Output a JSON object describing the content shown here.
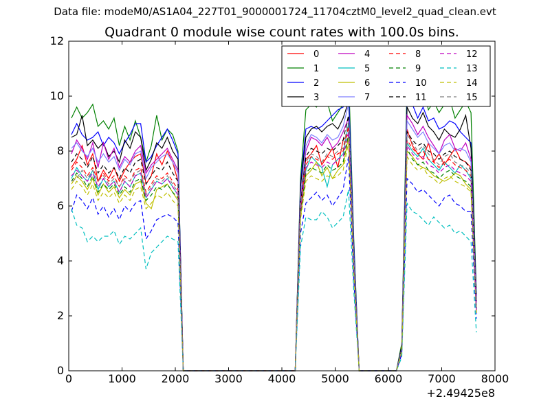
{
  "figure": {
    "suptitle": "Data file: modeM0/AS1A04_227T01_9000001724_11704cztM0_level2_quad_clean.evt"
  },
  "chart_data": {
    "type": "line",
    "title": "Quadrant 0 module wise count rates with 100.0s bins.",
    "xlabel": "",
    "ylabel": "",
    "x_offset_label": "+2.49425e8",
    "xlim": [
      0,
      8000
    ],
    "ylim": [
      0,
      12
    ],
    "x_ticks": [
      "0",
      "1000",
      "2000",
      "3000",
      "4000",
      "5000",
      "6000",
      "7000",
      "8000"
    ],
    "y_ticks": [
      "0",
      "2",
      "4",
      "6",
      "8",
      "10",
      "12"
    ],
    "grid": false,
    "legend_position": "top-right",
    "x": [
      50,
      150,
      250,
      350,
      450,
      550,
      650,
      750,
      850,
      950,
      1050,
      1150,
      1250,
      1350,
      1450,
      1550,
      1650,
      1750,
      1850,
      1950,
      2050,
      2150,
      2250,
      4250,
      4350,
      4450,
      4550,
      4650,
      4750,
      4850,
      4950,
      5050,
      5150,
      5250,
      5350,
      5450,
      6150,
      6250,
      6350,
      6450,
      6550,
      6650,
      6750,
      6850,
      6950,
      7050,
      7150,
      7250,
      7350,
      7450,
      7550,
      7650
    ],
    "series": [
      {
        "name": "0",
        "color": "#ff0000",
        "dash": "solid",
        "values": [
          7.4,
          7.7,
          8.2,
          7.5,
          7.9,
          6.9,
          7.3,
          7.0,
          7.4,
          6.9,
          7.3,
          7.6,
          7.8,
          7.9,
          6.8,
          7.1,
          7.9,
          7.5,
          8.0,
          7.6,
          6.9,
          0.0,
          0.0,
          0.0,
          6.2,
          7.7,
          7.9,
          8.2,
          7.5,
          7.8,
          8.1,
          7.4,
          8.4,
          8.6,
          3.9,
          0.0,
          0.0,
          0.8,
          8.8,
          8.2,
          7.9,
          7.7,
          8.3,
          7.6,
          7.9,
          7.5,
          7.8,
          8.1,
          7.7,
          7.6,
          7.4,
          2.4
        ]
      },
      {
        "name": "1",
        "color": "#008000",
        "dash": "solid",
        "values": [
          9.2,
          9.6,
          9.2,
          9.4,
          9.7,
          8.9,
          9.1,
          8.8,
          9.2,
          8.2,
          8.9,
          8.4,
          9.1,
          8.5,
          7.6,
          8.2,
          9.3,
          8.4,
          8.8,
          8.6,
          8.0,
          0.0,
          0.0,
          0.0,
          7.0,
          9.5,
          9.7,
          9.6,
          9.9,
          9.8,
          9.1,
          9.4,
          9.7,
          10.9,
          4.8,
          0.0,
          0.0,
          1.0,
          10.6,
          10.5,
          10.0,
          10.4,
          9.5,
          9.8,
          9.4,
          9.7,
          9.9,
          9.2,
          9.5,
          9.8,
          9.4,
          2.8
        ]
      },
      {
        "name": "2",
        "color": "#0000ff",
        "dash": "solid",
        "values": [
          8.6,
          9.0,
          8.6,
          8.4,
          8.5,
          8.7,
          8.2,
          8.5,
          8.3,
          7.9,
          8.3,
          8.6,
          9.0,
          9.0,
          7.6,
          7.8,
          8.2,
          8.5,
          8.8,
          8.4,
          7.9,
          0.0,
          0.0,
          0.0,
          6.8,
          8.8,
          8.9,
          8.8,
          8.9,
          9.1,
          9.3,
          9.5,
          9.6,
          10.3,
          4.6,
          0.0,
          0.0,
          0.9,
          9.9,
          9.7,
          9.2,
          9.6,
          9.1,
          9.2,
          8.8,
          8.9,
          9.1,
          9.0,
          8.7,
          8.5,
          8.3,
          2.7
        ]
      },
      {
        "name": "3",
        "color": "#000000",
        "dash": "solid",
        "values": [
          8.5,
          8.6,
          9.3,
          8.2,
          8.4,
          8.1,
          8.3,
          7.8,
          8.0,
          7.6,
          8.4,
          8.1,
          8.7,
          8.5,
          7.3,
          7.7,
          8.3,
          8.1,
          8.5,
          8.0,
          7.7,
          0.0,
          0.0,
          0.0,
          6.7,
          8.5,
          8.8,
          8.9,
          8.7,
          8.9,
          9.0,
          8.8,
          9.2,
          9.8,
          4.4,
          0.0,
          0.0,
          0.9,
          9.6,
          9.2,
          9.0,
          9.4,
          8.9,
          8.7,
          8.4,
          8.8,
          8.6,
          8.5,
          8.8,
          9.3,
          8.1,
          2.6
        ]
      },
      {
        "name": "4",
        "color": "#bf00bf",
        "dash": "solid",
        "values": [
          7.9,
          8.4,
          8.1,
          7.7,
          8.3,
          7.4,
          8.3,
          7.7,
          8.1,
          7.4,
          7.8,
          7.6,
          8.0,
          8.2,
          7.2,
          7.5,
          7.7,
          7.9,
          8.1,
          7.7,
          7.3,
          0.0,
          0.0,
          0.0,
          6.4,
          8.0,
          8.5,
          8.4,
          8.2,
          8.5,
          8.1,
          8.3,
          8.7,
          9.2,
          4.2,
          0.0,
          0.0,
          0.8,
          9.3,
          9.0,
          8.6,
          8.9,
          8.5,
          8.2,
          7.9,
          8.4,
          8.6,
          8.1,
          8.0,
          8.3,
          7.7,
          2.5
        ]
      },
      {
        "name": "5",
        "color": "#00bfbf",
        "dash": "solid",
        "values": [
          7.0,
          7.4,
          7.1,
          6.9,
          7.3,
          6.6,
          7.0,
          6.7,
          6.9,
          6.5,
          6.9,
          6.7,
          7.1,
          7.2,
          6.3,
          6.6,
          6.9,
          6.8,
          7.0,
          6.7,
          6.4,
          0.0,
          0.0,
          0.0,
          5.8,
          7.3,
          7.8,
          7.6,
          7.4,
          6.7,
          7.5,
          7.7,
          7.9,
          9.0,
          3.9,
          0.0,
          0.0,
          0.7,
          8.3,
          8.0,
          7.8,
          8.1,
          7.7,
          7.5,
          7.3,
          7.6,
          7.4,
          7.2,
          7.5,
          7.3,
          7.0,
          2.2
        ]
      },
      {
        "name": "6",
        "color": "#bfbf00",
        "dash": "solid",
        "values": [
          6.8,
          7.1,
          6.9,
          6.6,
          7.0,
          6.4,
          6.8,
          6.5,
          6.7,
          6.3,
          6.6,
          6.4,
          6.8,
          6.9,
          6.1,
          5.9,
          6.6,
          6.7,
          6.8,
          6.5,
          6.2,
          0.0,
          0.0,
          0.0,
          5.6,
          7.1,
          7.3,
          7.6,
          7.1,
          7.4,
          7.0,
          7.3,
          7.5,
          8.5,
          3.7,
          0.0,
          0.0,
          0.7,
          8.0,
          7.8,
          7.5,
          7.4,
          7.3,
          7.1,
          7.0,
          6.9,
          7.0,
          7.2,
          7.1,
          6.8,
          6.6,
          2.1
        ]
      },
      {
        "name": "7",
        "color": "#7f7fff",
        "dash": "solid",
        "values": [
          8.1,
          8.3,
          8.0,
          7.8,
          8.1,
          7.6,
          7.9,
          7.6,
          7.8,
          7.3,
          7.7,
          7.5,
          7.9,
          8.0,
          7.0,
          7.4,
          7.6,
          7.8,
          7.9,
          7.6,
          7.2,
          0.0,
          0.0,
          0.0,
          6.3,
          8.2,
          8.6,
          8.5,
          8.3,
          8.6,
          8.4,
          8.5,
          8.9,
          9.7,
          4.3,
          0.0,
          0.0,
          0.8,
          9.1,
          8.8,
          8.5,
          8.7,
          8.3,
          8.1,
          7.9,
          8.2,
          8.3,
          8.0,
          8.1,
          8.0,
          7.6,
          2.4
        ]
      },
      {
        "name": "8",
        "color": "#ff0000",
        "dash": "dashed",
        "values": [
          7.3,
          7.6,
          7.4,
          7.1,
          7.4,
          6.9,
          7.2,
          6.9,
          7.1,
          6.7,
          7.1,
          6.9,
          7.3,
          7.4,
          6.5,
          6.8,
          7.1,
          7.0,
          7.2,
          6.9,
          6.6,
          0.0,
          0.0,
          0.0,
          5.9,
          7.5,
          7.8,
          7.7,
          7.6,
          7.8,
          7.7,
          7.9,
          8.0,
          8.9,
          3.9,
          0.0,
          0.0,
          0.7,
          8.4,
          8.1,
          7.9,
          8.0,
          7.7,
          7.6,
          7.4,
          7.6,
          7.7,
          7.5,
          7.4,
          7.3,
          7.1,
          2.3
        ]
      },
      {
        "name": "9",
        "color": "#008000",
        "dash": "dashed",
        "values": [
          6.9,
          7.2,
          7.0,
          6.7,
          7.1,
          6.5,
          6.8,
          6.6,
          6.8,
          6.4,
          6.7,
          6.5,
          6.9,
          7.0,
          6.2,
          6.4,
          6.7,
          6.6,
          6.8,
          6.5,
          6.3,
          0.0,
          0.0,
          0.0,
          5.7,
          7.2,
          7.4,
          7.3,
          7.2,
          7.5,
          7.3,
          7.4,
          7.6,
          8.6,
          3.8,
          0.0,
          0.0,
          0.7,
          8.1,
          7.7,
          7.5,
          7.6,
          7.3,
          7.2,
          7.0,
          7.2,
          7.3,
          7.1,
          7.0,
          6.9,
          6.7,
          2.2
        ]
      },
      {
        "name": "10",
        "color": "#0000ff",
        "dash": "dashed",
        "values": [
          5.8,
          6.4,
          6.2,
          5.9,
          6.3,
          5.7,
          6.0,
          5.6,
          5.9,
          5.5,
          6.0,
          5.8,
          6.1,
          6.2,
          4.8,
          5.1,
          5.5,
          5.6,
          5.7,
          5.6,
          5.4,
          0.0,
          0.0,
          0.0,
          5.0,
          6.1,
          6.3,
          6.5,
          6.2,
          6.4,
          6.0,
          6.3,
          6.6,
          7.8,
          3.3,
          0.0,
          0.0,
          0.6,
          7.0,
          6.8,
          6.5,
          6.6,
          6.4,
          6.2,
          6.0,
          6.3,
          6.4,
          6.1,
          6.0,
          5.8,
          5.8,
          1.9
        ]
      },
      {
        "name": "11",
        "color": "#000000",
        "dash": "dashed",
        "values": [
          7.6,
          7.9,
          7.7,
          7.4,
          7.8,
          7.2,
          7.5,
          7.2,
          7.4,
          7.0,
          7.4,
          7.2,
          7.6,
          7.7,
          6.8,
          7.1,
          7.4,
          7.3,
          7.6,
          7.2,
          6.9,
          0.0,
          0.0,
          0.0,
          6.1,
          7.8,
          8.1,
          8.0,
          7.9,
          8.1,
          8.0,
          8.2,
          8.4,
          9.3,
          4.1,
          0.0,
          0.0,
          0.8,
          8.7,
          8.4,
          8.2,
          8.3,
          8.0,
          7.9,
          7.7,
          7.9,
          8.0,
          7.8,
          7.7,
          7.6,
          7.3,
          2.4
        ]
      },
      {
        "name": "12",
        "color": "#bf00bf",
        "dash": "dashed",
        "values": [
          7.1,
          7.3,
          7.1,
          6.9,
          7.2,
          6.7,
          7.0,
          6.7,
          6.9,
          6.5,
          6.9,
          6.7,
          7.1,
          7.2,
          6.3,
          6.6,
          6.9,
          6.8,
          7.0,
          6.7,
          6.4,
          0.0,
          0.0,
          0.0,
          5.8,
          7.4,
          7.6,
          7.5,
          7.4,
          7.6,
          7.5,
          7.7,
          7.8,
          8.7,
          3.8,
          0.0,
          0.0,
          0.7,
          8.2,
          7.9,
          7.7,
          7.8,
          7.5,
          7.4,
          7.2,
          7.4,
          7.5,
          7.3,
          7.2,
          7.1,
          6.9,
          2.2
        ]
      },
      {
        "name": "13",
        "color": "#00bfbf",
        "dash": "dashed",
        "values": [
          5.9,
          5.3,
          5.2,
          4.7,
          4.9,
          4.7,
          4.9,
          4.9,
          5.1,
          4.6,
          4.9,
          4.8,
          5.0,
          5.2,
          3.7,
          4.3,
          4.5,
          4.7,
          4.9,
          4.8,
          4.7,
          0.0,
          0.0,
          0.0,
          4.5,
          5.6,
          5.5,
          5.5,
          5.8,
          5.6,
          5.2,
          5.4,
          5.6,
          6.6,
          2.9,
          0.0,
          0.0,
          0.5,
          6.1,
          5.8,
          5.7,
          5.5,
          5.3,
          5.6,
          5.4,
          5.2,
          5.3,
          5.0,
          5.1,
          4.9,
          4.7,
          1.4
        ]
      },
      {
        "name": "14",
        "color": "#bfbf00",
        "dash": "dashed",
        "values": [
          6.6,
          6.9,
          6.7,
          6.4,
          6.8,
          6.2,
          6.5,
          6.3,
          6.5,
          6.1,
          6.4,
          6.2,
          6.6,
          6.7,
          5.9,
          6.1,
          6.4,
          6.3,
          6.5,
          6.2,
          6.0,
          0.0,
          0.0,
          0.0,
          5.5,
          6.9,
          7.1,
          7.0,
          6.9,
          7.1,
          7.0,
          7.1,
          7.3,
          8.3,
          3.6,
          0.0,
          0.0,
          0.7,
          7.8,
          7.5,
          7.3,
          7.4,
          7.1,
          7.0,
          6.8,
          7.0,
          7.1,
          6.9,
          6.8,
          6.7,
          6.5,
          2.1
        ]
      },
      {
        "name": "15",
        "color": "#7f7f7f",
        "dash": "dashed",
        "values": [
          6.9,
          7.0,
          7.3,
          7.0,
          7.3,
          6.9,
          7.1,
          6.8,
          7.0,
          6.7,
          7.0,
          6.9,
          7.2,
          7.3,
          6.4,
          6.7,
          7.0,
          6.9,
          7.1,
          6.8,
          6.5,
          0.0,
          0.0,
          0.0,
          6.0,
          7.6,
          7.9,
          7.8,
          7.6,
          7.9,
          7.8,
          8.0,
          8.1,
          9.1,
          4.0,
          0.0,
          0.0,
          0.8,
          8.6,
          8.3,
          8.0,
          8.2,
          7.9,
          7.7,
          7.5,
          7.8,
          7.9,
          7.6,
          7.5,
          7.4,
          7.2,
          2.3
        ]
      }
    ]
  }
}
